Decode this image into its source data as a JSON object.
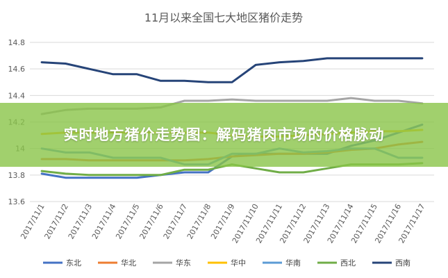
{
  "chart_data": {
    "type": "line",
    "title": "11月以来全国七大地区猪价走势",
    "xlabel": "",
    "ylabel": "",
    "ylim": [
      13.6,
      14.8
    ],
    "yticks": [
      "13.6",
      "13.8",
      "14",
      "14.2",
      "14.4",
      "14.6",
      "14.8"
    ],
    "grid": true,
    "legend": "bottom",
    "categories": [
      "2017/11/1",
      "2017/11/2",
      "2017/11/3",
      "2017/11/4",
      "2017/11/5",
      "2017/11/6",
      "2017/11/7",
      "2017/11/8",
      "2017/11/9",
      "2017/11/10",
      "2017/11/11",
      "2017/11/12",
      "2017/11/13",
      "2017/11/14",
      "2017/11/15",
      "2017/11/16",
      "2017/11/17"
    ],
    "series": [
      {
        "name": "东北",
        "color": "#4472c4",
        "values": [
          13.81,
          13.78,
          13.78,
          13.78,
          13.78,
          13.8,
          13.82,
          13.82,
          13.94,
          13.96,
          13.96,
          13.96,
          13.96,
          14.02,
          14.06,
          14.12,
          14.18
        ]
      },
      {
        "name": "华北",
        "color": "#ed7d31",
        "values": [
          13.92,
          13.92,
          13.91,
          13.91,
          13.91,
          13.91,
          13.91,
          13.92,
          13.94,
          13.95,
          13.96,
          13.96,
          13.97,
          13.99,
          14.0,
          14.03,
          14.05
        ]
      },
      {
        "name": "华东",
        "color": "#a5a5a5",
        "values": [
          14.26,
          14.29,
          14.3,
          14.3,
          14.3,
          14.31,
          14.36,
          14.36,
          14.37,
          14.36,
          14.36,
          14.36,
          14.36,
          14.38,
          14.36,
          14.36,
          14.34
        ]
      },
      {
        "name": "华中",
        "color": "#ffc000",
        "values": [
          14.11,
          14.12,
          14.12,
          14.12,
          14.12,
          14.12,
          14.12,
          14.12,
          14.1,
          14.09,
          14.09,
          14.1,
          14.11,
          14.12,
          14.13,
          14.13,
          14.14
        ]
      },
      {
        "name": "华南",
        "color": "#5b9bd5",
        "values": [
          14.0,
          13.97,
          13.97,
          13.93,
          13.93,
          13.93,
          13.88,
          13.88,
          13.96,
          13.96,
          14.0,
          13.97,
          13.98,
          14.0,
          14.0,
          13.93,
          13.93
        ]
      },
      {
        "name": "西北",
        "color": "#70ad47",
        "values": [
          13.83,
          13.81,
          13.8,
          13.8,
          13.8,
          13.8,
          13.84,
          13.84,
          13.88,
          13.85,
          13.82,
          13.82,
          13.85,
          13.88,
          13.88,
          13.88,
          13.89
        ]
      },
      {
        "name": "西南",
        "color": "#264478",
        "values": [
          14.65,
          14.64,
          14.6,
          14.56,
          14.56,
          14.51,
          14.51,
          14.5,
          14.5,
          14.63,
          14.65,
          14.66,
          14.68,
          14.68,
          14.68,
          14.68,
          14.68
        ]
      }
    ]
  },
  "banner": {
    "text": "实时地方猪价走势图：解码猪肉市场的价格脉动"
  }
}
